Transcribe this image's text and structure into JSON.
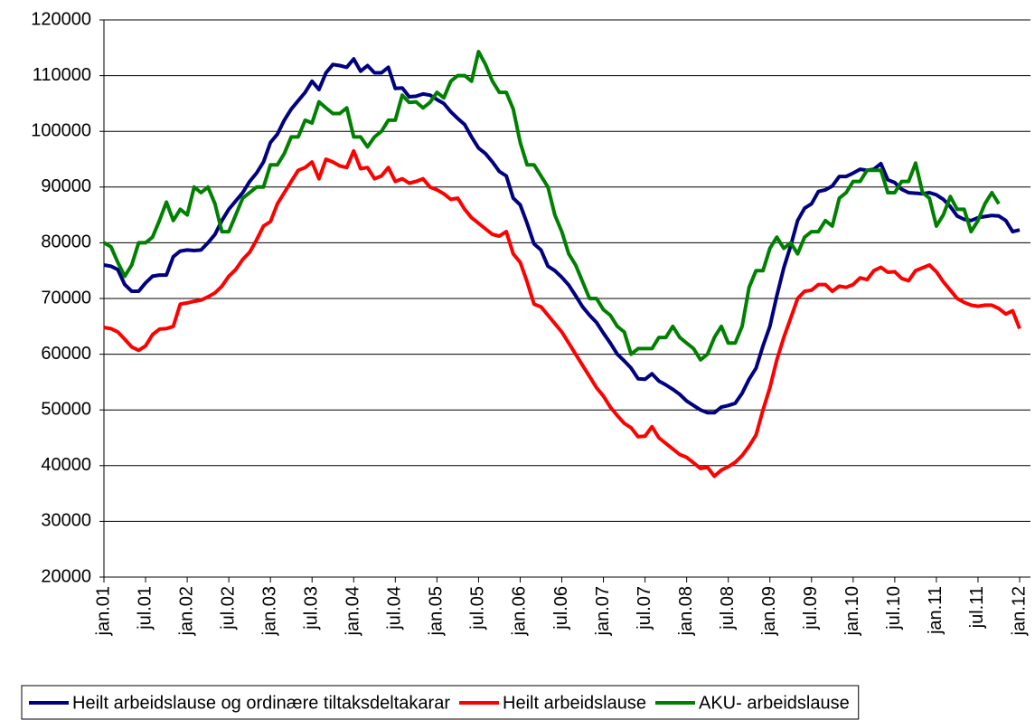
{
  "chart_data": {
    "type": "line",
    "categories": [
      "jan.01",
      null,
      null,
      null,
      null,
      null,
      "jul.01",
      null,
      null,
      null,
      null,
      null,
      "jan.02",
      null,
      null,
      null,
      null,
      null,
      "jul.02",
      null,
      null,
      null,
      null,
      null,
      "jan.03",
      null,
      null,
      null,
      null,
      null,
      "jul.03",
      null,
      null,
      null,
      null,
      null,
      "jan.04",
      null,
      null,
      null,
      null,
      null,
      "jul.04",
      null,
      null,
      null,
      null,
      null,
      "jan.05",
      null,
      null,
      null,
      null,
      null,
      "jul.05",
      null,
      null,
      null,
      null,
      null,
      "jan.06",
      null,
      null,
      null,
      null,
      null,
      "jul.06",
      null,
      null,
      null,
      null,
      null,
      "jan.07",
      null,
      null,
      null,
      null,
      null,
      "jul.07",
      null,
      null,
      null,
      null,
      null,
      "jan.08",
      null,
      null,
      null,
      null,
      null,
      "jul.08",
      null,
      null,
      null,
      null,
      null,
      "jan.09",
      null,
      null,
      null,
      null,
      null,
      "jul.09",
      null,
      null,
      null,
      null,
      null,
      "jan.10",
      null,
      null,
      null,
      null,
      null,
      "jul.10",
      null,
      null,
      null,
      null,
      null,
      "jan.11",
      null,
      null,
      null,
      null,
      null,
      "jul.11",
      null,
      null,
      null,
      null,
      null,
      "jan.12"
    ],
    "series": [
      {
        "name": "Heilt arbeidslause og ordinære tiltaksdeltakarar",
        "color": "#000080",
        "values": [
          76000,
          75800,
          75200,
          72500,
          71300,
          71300,
          72800,
          74000,
          74200,
          74200,
          77500,
          78500,
          78700,
          78600,
          78700,
          80000,
          81500,
          84000,
          86000,
          87500,
          89000,
          91000,
          92500,
          94500,
          98000,
          99500,
          102000,
          104000,
          105500,
          107000,
          109000,
          107500,
          110500,
          112000,
          111800,
          111500,
          113000,
          110800,
          111800,
          110500,
          110500,
          111500,
          107700,
          107800,
          106200,
          106300,
          106700,
          106500,
          105700,
          105000,
          103500,
          102300,
          101200,
          99000,
          97000,
          96000,
          94500,
          92800,
          92000,
          88000,
          86800,
          83500,
          79800,
          78700,
          75800,
          75000,
          73800,
          72400,
          70500,
          68500,
          67000,
          65700,
          63800,
          62000,
          60000,
          58800,
          57500,
          55600,
          55500,
          56500,
          55200,
          54500,
          53700,
          52800,
          51600,
          50800,
          50000,
          49500,
          49500,
          50500,
          50800,
          51200,
          53000,
          55500,
          57500,
          61500,
          65000,
          70500,
          75500,
          79500,
          84000,
          86200,
          87000,
          89200,
          89500,
          90200,
          91900,
          91900,
          92500,
          93200,
          93000,
          93200,
          94200,
          91300,
          90800,
          89600,
          89000,
          88900,
          88800,
          89000,
          88600,
          87800,
          86500,
          84800,
          84200,
          84000,
          84500,
          84700,
          84900,
          84800,
          84000,
          82000,
          82300
        ]
      },
      {
        "name": "Heilt arbeidslause",
        "color": "#ff0000",
        "values": [
          64800,
          64600,
          64000,
          62700,
          61300,
          60700,
          61500,
          63500,
          64500,
          64600,
          65000,
          69000,
          69200,
          69500,
          69700,
          70300,
          71000,
          72200,
          74000,
          75200,
          77000,
          78300,
          80500,
          83000,
          83800,
          87000,
          89000,
          91000,
          93000,
          93500,
          94500,
          91500,
          95000,
          94500,
          93800,
          93500,
          96500,
          93300,
          93500,
          91500,
          92000,
          93500,
          91000,
          91500,
          90700,
          91000,
          91500,
          90000,
          89500,
          88800,
          87800,
          88000,
          86000,
          84500,
          83500,
          82500,
          81500,
          81200,
          82000,
          78000,
          76500,
          73000,
          69000,
          68500,
          67000,
          65500,
          64000,
          62000,
          60000,
          58000,
          56000,
          54000,
          52500,
          50500,
          49000,
          47600,
          46800,
          45200,
          45300,
          47000,
          45000,
          44000,
          43000,
          42000,
          41500,
          40500,
          39500,
          39700,
          38100,
          39200,
          39800,
          40600,
          41800,
          43500,
          45500,
          50000,
          54000,
          59000,
          63000,
          66500,
          70000,
          71300,
          71500,
          72500,
          72500,
          71300,
          72200,
          72000,
          72500,
          73700,
          73400,
          75000,
          75600,
          74700,
          74800,
          73600,
          73200,
          75000,
          75500,
          76000,
          74800,
          73000,
          71500,
          70000,
          69300,
          68800,
          68600,
          68800,
          68800,
          68200,
          67200,
          67800,
          64600
        ]
      },
      {
        "name": "AKU- arbeidslause",
        "color": "#008000",
        "values": [
          80000,
          79300,
          76500,
          74000,
          76000,
          80000,
          80000,
          81000,
          84000,
          87300,
          84000,
          86000,
          85000,
          90000,
          89000,
          90000,
          87000,
          82000,
          82000,
          85000,
          88000,
          89000,
          90000,
          90000,
          94000,
          94000,
          96000,
          99000,
          99000,
          102000,
          101500,
          105300,
          104200,
          103200,
          103200,
          104200,
          99000,
          99000,
          97200,
          99000,
          100000,
          102000,
          102000,
          106500,
          105200,
          105300,
          104200,
          105200,
          107000,
          106000,
          109000,
          110000,
          110000,
          109000,
          114300,
          112000,
          109000,
          107000,
          107000,
          104000,
          98000,
          94000,
          94000,
          92000,
          90000,
          85000,
          82000,
          78000,
          76000,
          73000,
          70000,
          70000,
          68000,
          67000,
          65000,
          64000,
          60000,
          61000,
          61000,
          61000,
          63000,
          63000,
          65000,
          63000,
          62000,
          61000,
          59000,
          60000,
          63000,
          65000,
          62000,
          62000,
          65000,
          72000,
          75000,
          75000,
          79000,
          81000,
          79000,
          80000,
          78000,
          81000,
          82000,
          82000,
          84000,
          83000,
          88000,
          89000,
          91000,
          91000,
          93000,
          93000,
          93000,
          89000,
          89000,
          91000,
          91000,
          94300,
          89000,
          88000,
          83000,
          85000,
          88300,
          86000,
          86000,
          82000,
          84000,
          87000,
          89000,
          87000,
          null,
          null,
          null
        ]
      }
    ],
    "ylim": [
      20000,
      120000
    ],
    "yticks": [
      20000,
      30000,
      40000,
      50000,
      60000,
      70000,
      80000,
      90000,
      100000,
      110000,
      120000
    ],
    "grid": true,
    "legend": "bottom"
  }
}
